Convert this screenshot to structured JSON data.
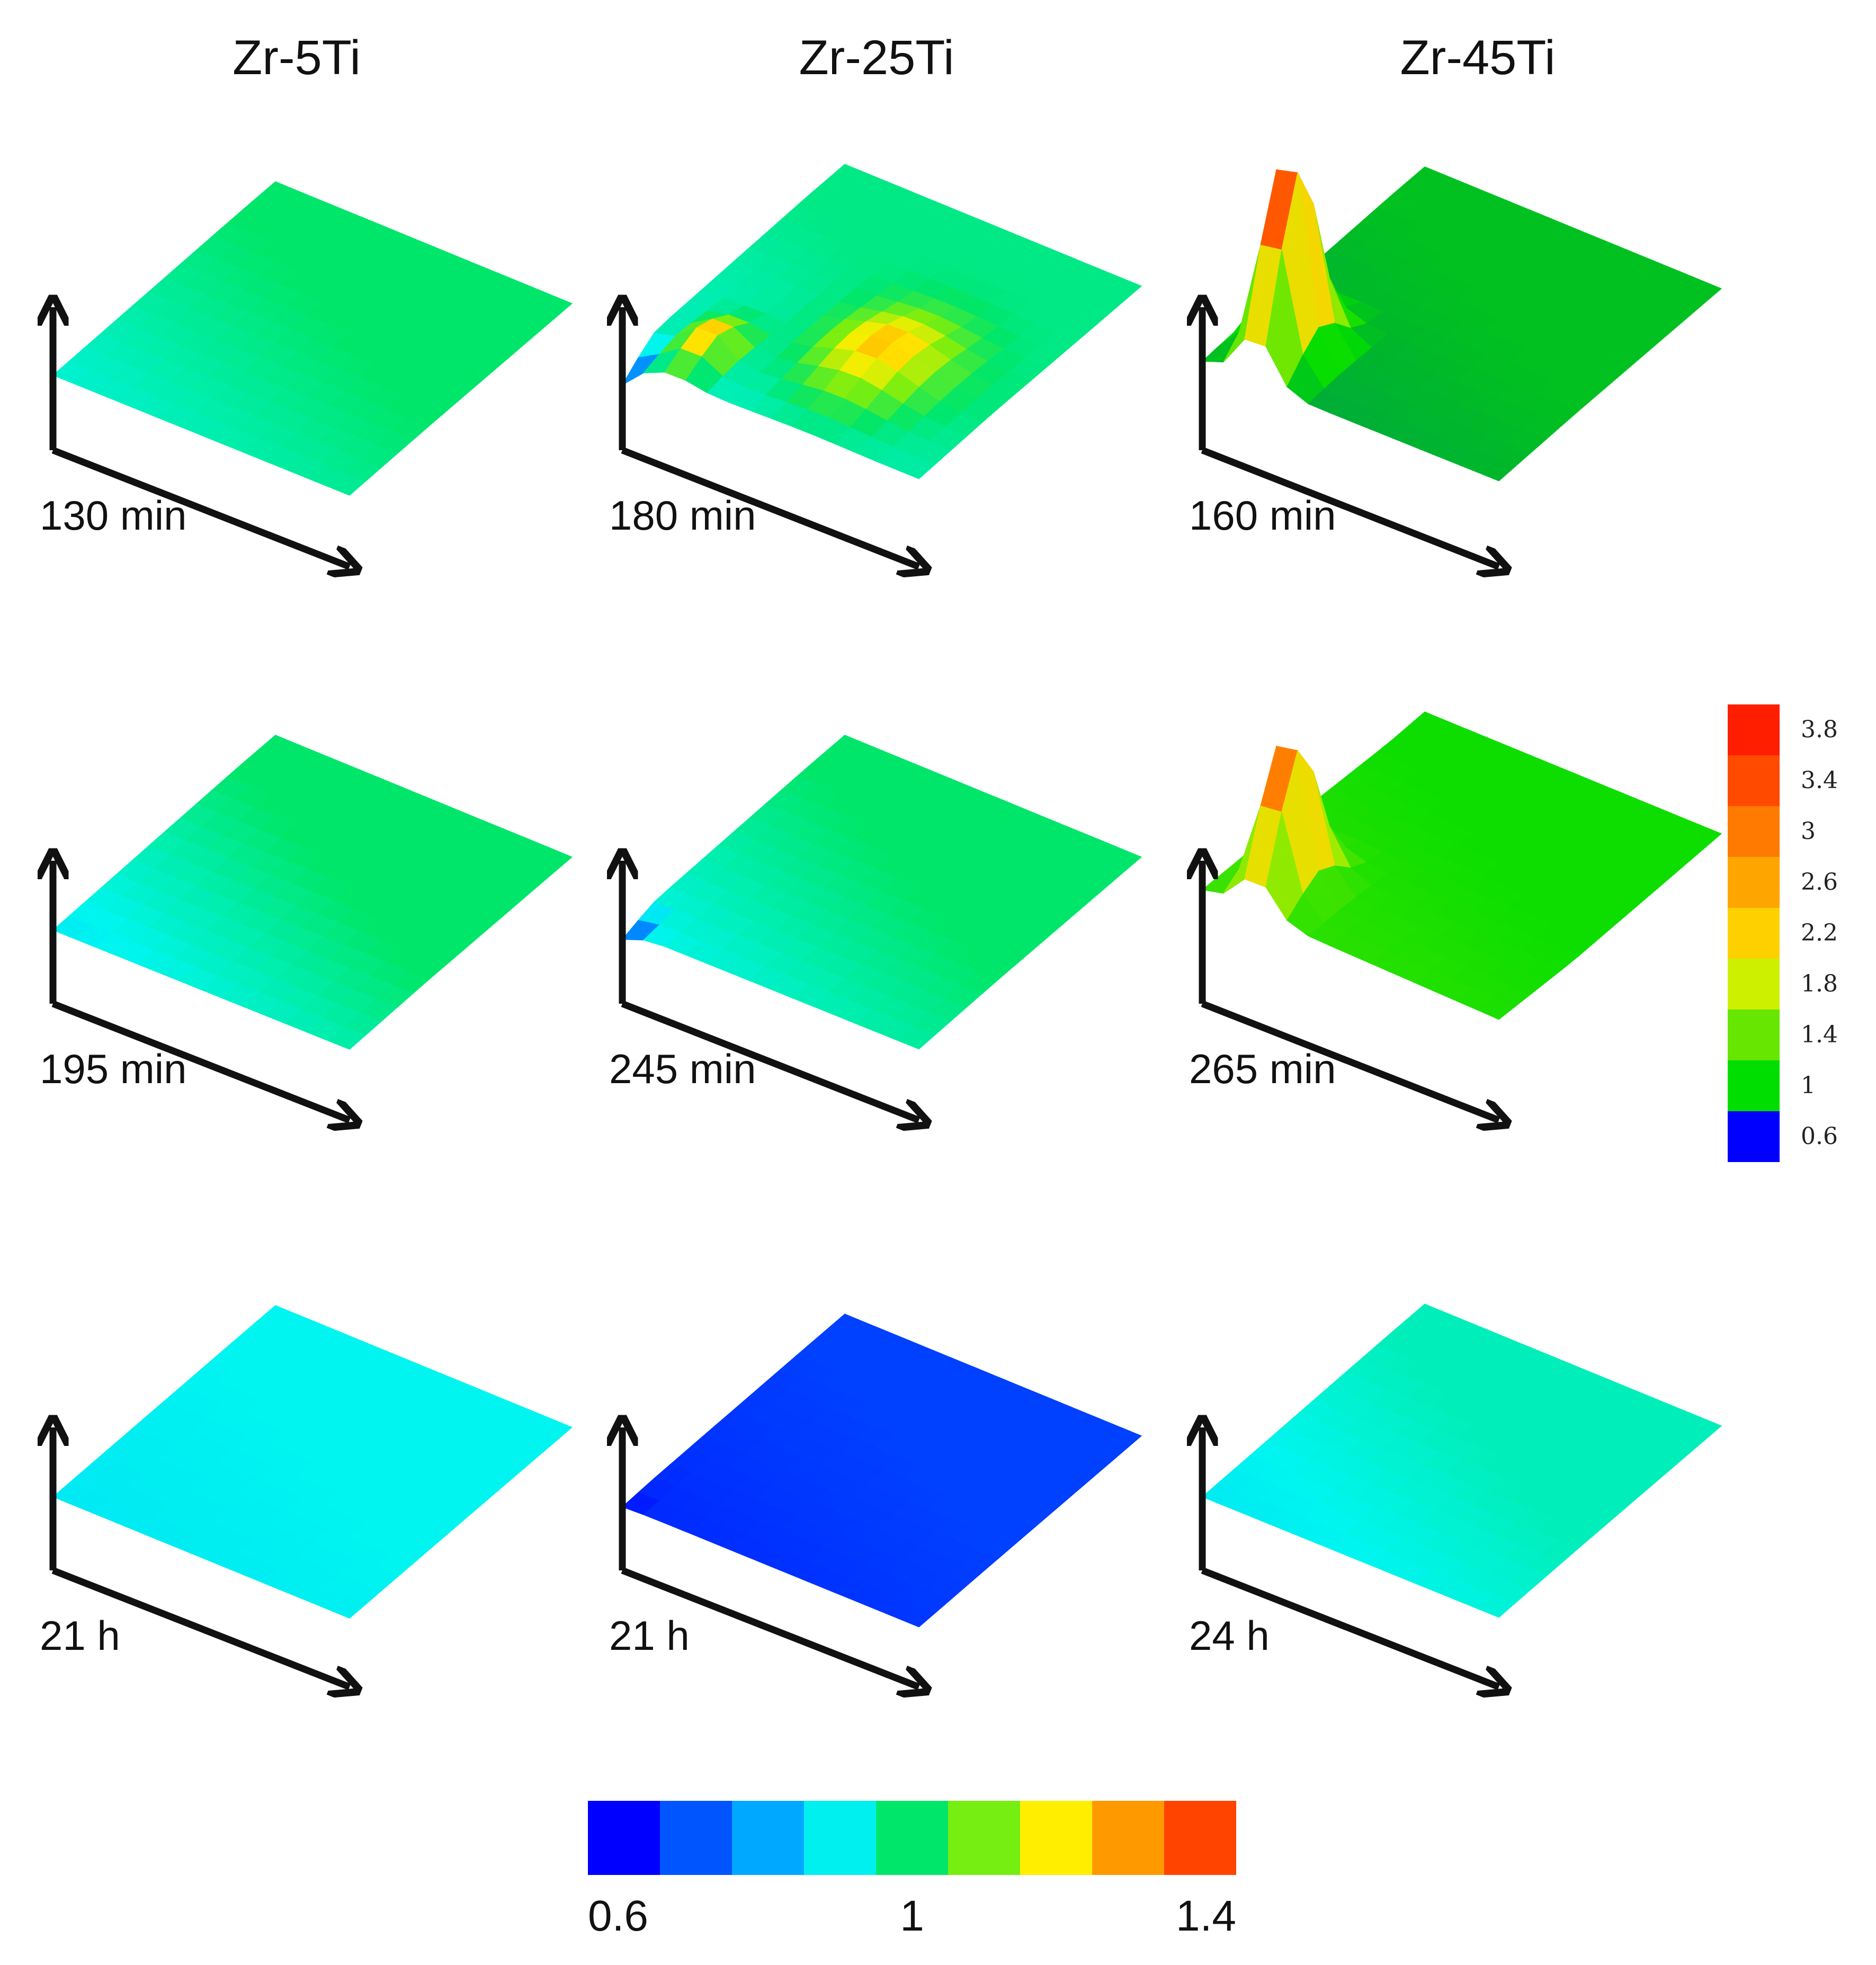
{
  "chart_data": {
    "type": "surface-grid",
    "columns": [
      "Zr-5Ti",
      "Zr-25Ti",
      "Zr-45Ti"
    ],
    "panels": [
      {
        "alloy": "Zr-5Ti",
        "row": 0,
        "time": "130 min",
        "level": 1.0,
        "near": 0.92,
        "dip": 0,
        "peak": 0,
        "colorscale": "horizontal"
      },
      {
        "alloy": "Zr-25Ti",
        "row": 0,
        "time": "180 min",
        "level": 0.98,
        "near": 0.92,
        "dip": 0.62,
        "peak": 1.25,
        "colorscale": "horizontal"
      },
      {
        "alloy": "Zr-45Ti",
        "row": 0,
        "time": "160 min",
        "level": 0.95,
        "near": 0.9,
        "dip": 0,
        "peak": 3.6,
        "colorscale": "vertical"
      },
      {
        "alloy": "Zr-5Ti",
        "row": 1,
        "time": "195 min",
        "level": 1.0,
        "near": 0.88,
        "dip": 0,
        "peak": 0,
        "colorscale": "horizontal"
      },
      {
        "alloy": "Zr-25Ti",
        "row": 1,
        "time": "245 min",
        "level": 1.0,
        "near": 0.9,
        "dip": 0.62,
        "peak": 0,
        "colorscale": "horizontal"
      },
      {
        "alloy": "Zr-45Ti",
        "row": 1,
        "time": "265 min",
        "level": 1.05,
        "near": 1.2,
        "dip": 0,
        "peak": 3.2,
        "colorscale": "vertical"
      },
      {
        "alloy": "Zr-5Ti",
        "row": 2,
        "time": "21 h",
        "level": 0.9,
        "near": 0.88,
        "dip": 0,
        "peak": 0,
        "colorscale": "horizontal"
      },
      {
        "alloy": "Zr-25Ti",
        "row": 2,
        "time": "21 h",
        "level": 0.66,
        "near": 0.63,
        "dip": 0.6,
        "peak": 0,
        "colorscale": "horizontal"
      },
      {
        "alloy": "Zr-45Ti",
        "row": 2,
        "time": "24 h",
        "level": 0.94,
        "near": 0.88,
        "dip": 0,
        "peak": 0,
        "colorscale": "horizontal"
      }
    ],
    "colorbar_vertical": {
      "ticks": [
        "3.8",
        "3.4",
        "3",
        "2.6",
        "2.2",
        "1.8",
        "1.4",
        "1",
        "0.6"
      ],
      "colors": [
        "#ff1e00",
        "#ff4a00",
        "#ff7a00",
        "#ffa500",
        "#ffd000",
        "#ccf000",
        "#66e600",
        "#00dd00",
        "#0000ff"
      ]
    },
    "colorbar_horizontal": {
      "ticks": [
        "0.6",
        "1",
        "1.4"
      ],
      "range": [
        0.6,
        1.4
      ],
      "colors": [
        "#0000ff",
        "#0055ff",
        "#00a8ff",
        "#00f0f0",
        "#00e66a",
        "#77ee11",
        "#ffee00",
        "#ff9900",
        "#ff4400"
      ]
    }
  }
}
